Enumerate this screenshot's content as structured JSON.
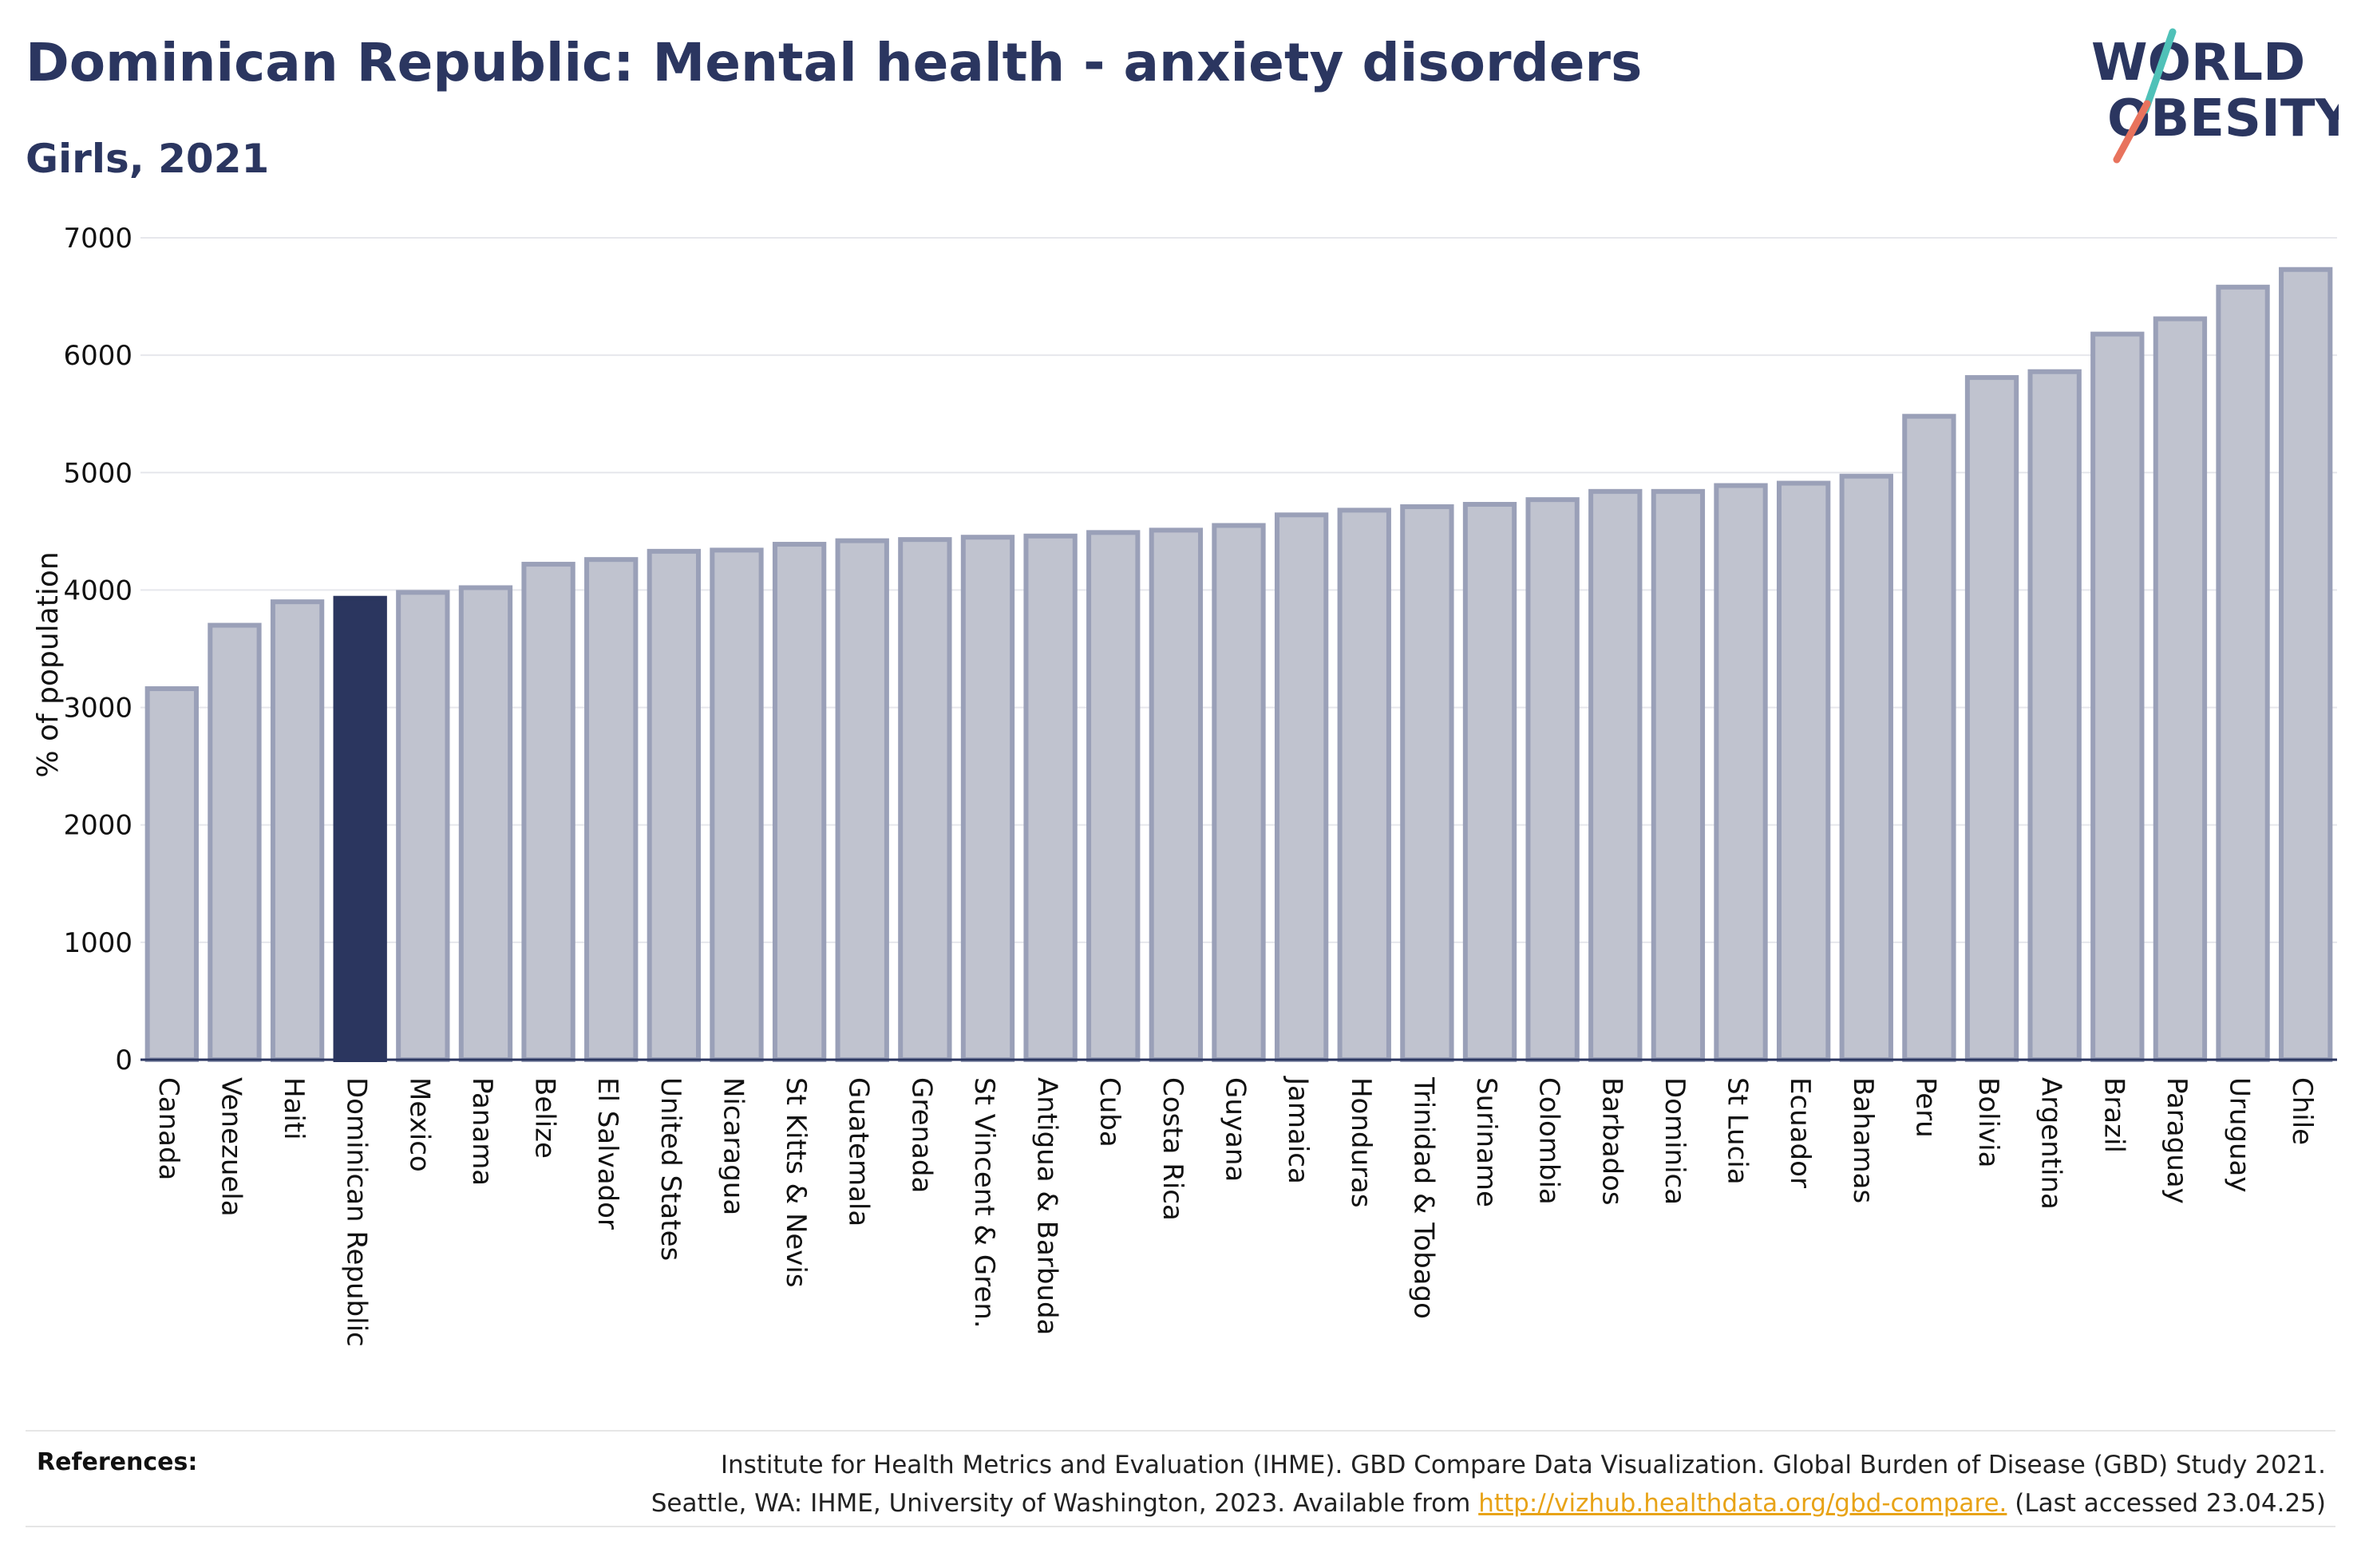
{
  "title": "Dominican Republic: Mental health - anxiety disorders",
  "subtitle": "Girls, 2021",
  "logo": {
    "line1": "WORLD",
    "line2": "OBESITY",
    "accent_colors": [
      "#4fc1b8",
      "#e8735d"
    ]
  },
  "colors": {
    "highlight": "#2b365f",
    "bar_fill": "#c0c3cf",
    "bar_stroke": "#9aa0b8",
    "text": "#2b3660",
    "link": "#e8a317"
  },
  "chart_data": {
    "type": "bar",
    "ylabel": "% of population",
    "xlabel": "",
    "ylim": [
      0,
      7000
    ],
    "yticks": [
      0,
      1000,
      2000,
      3000,
      4000,
      5000,
      6000,
      7000
    ],
    "grid": true,
    "highlight": "Dominican Republic",
    "categories": [
      "Canada",
      "Venezuela",
      "Haiti",
      "Dominican Republic",
      "Mexico",
      "Panama",
      "Belize",
      "El Salvador",
      "United States",
      "Nicaragua",
      "St Kitts & Nevis",
      "Guatemala",
      "Grenada",
      "St Vincent & Gren.",
      "Antigua & Barbuda",
      "Cuba",
      "Costa Rica",
      "Guyana",
      "Jamaica",
      "Honduras",
      "Trinidad & Tobago",
      "Suriname",
      "Colombia",
      "Barbados",
      "Dominica",
      "St Lucia",
      "Ecuador",
      "Bahamas",
      "Peru",
      "Bolivia",
      "Argentina",
      "Brazil",
      "Paraguay",
      "Uruguay",
      "Chile"
    ],
    "values": [
      3160,
      3700,
      3900,
      3930,
      3980,
      4020,
      4220,
      4260,
      4330,
      4340,
      4390,
      4420,
      4430,
      4450,
      4460,
      4490,
      4510,
      4550,
      4640,
      4680,
      4710,
      4730,
      4770,
      4840,
      4840,
      4890,
      4910,
      4970,
      5480,
      5810,
      5860,
      6180,
      6310,
      6580,
      6730
    ]
  },
  "references": {
    "label": "References:",
    "line1": "Institute for Health Metrics and Evaluation (IHME). GBD Compare Data Visualization. Global Burden of Disease (GBD) Study 2021.",
    "line2_before": "Seattle, WA: IHME, University of Washington, 2023. Available from ",
    "link": "http://vizhub.healthdata.org/gbd-compare.",
    "line2_after": " (Last accessed 23.04.25)"
  }
}
